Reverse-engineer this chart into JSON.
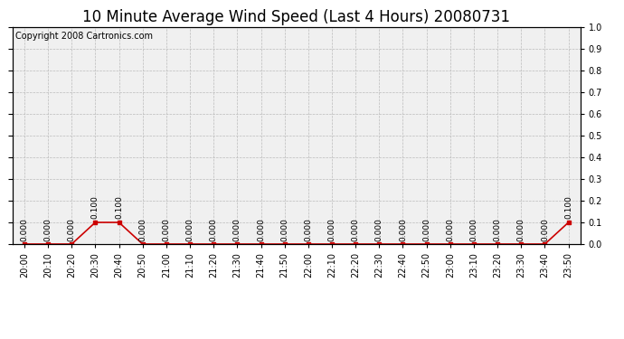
{
  "title": "10 Minute Average Wind Speed (Last 4 Hours) 20080731",
  "copyright": "Copyright 2008 Cartronics.com",
  "x_labels": [
    "20:00",
    "20:10",
    "20:20",
    "20:30",
    "20:40",
    "20:50",
    "21:00",
    "21:10",
    "21:20",
    "21:30",
    "21:40",
    "21:50",
    "22:00",
    "22:10",
    "22:20",
    "22:30",
    "22:40",
    "22:50",
    "23:00",
    "23:10",
    "23:20",
    "23:30",
    "23:40",
    "23:50"
  ],
  "y_values": [
    0.0,
    0.0,
    0.0,
    0.1,
    0.1,
    0.0,
    0.0,
    0.0,
    0.0,
    0.0,
    0.0,
    0.0,
    0.0,
    0.0,
    0.0,
    0.0,
    0.0,
    0.0,
    0.0,
    0.0,
    0.0,
    0.0,
    0.0,
    0.1
  ],
  "point_labels": [
    "0.000",
    "0.000",
    "0.000",
    "0.100",
    "0.100",
    "0.000",
    "0.000",
    "0.000",
    "0.000",
    "0.000",
    "0.000",
    "0.000",
    "0.000",
    "0.000",
    "0.000",
    "0.000",
    "0.000",
    "0.000",
    "0.000",
    "0.000",
    "0.000",
    "0.000",
    "0.000",
    "0.100"
  ],
  "line_color": "#cc0000",
  "marker_color": "#cc0000",
  "background_color": "#ffffff",
  "plot_bg_color": "#f0f0f0",
  "grid_color": "#bbbbbb",
  "ylim": [
    0.0,
    1.0
  ],
  "yticks": [
    0.0,
    0.1,
    0.2,
    0.3,
    0.4,
    0.5,
    0.6,
    0.7,
    0.8,
    0.9,
    1.0
  ],
  "title_fontsize": 12,
  "copyright_fontsize": 7,
  "label_fontsize": 6.5,
  "tick_fontsize": 7
}
